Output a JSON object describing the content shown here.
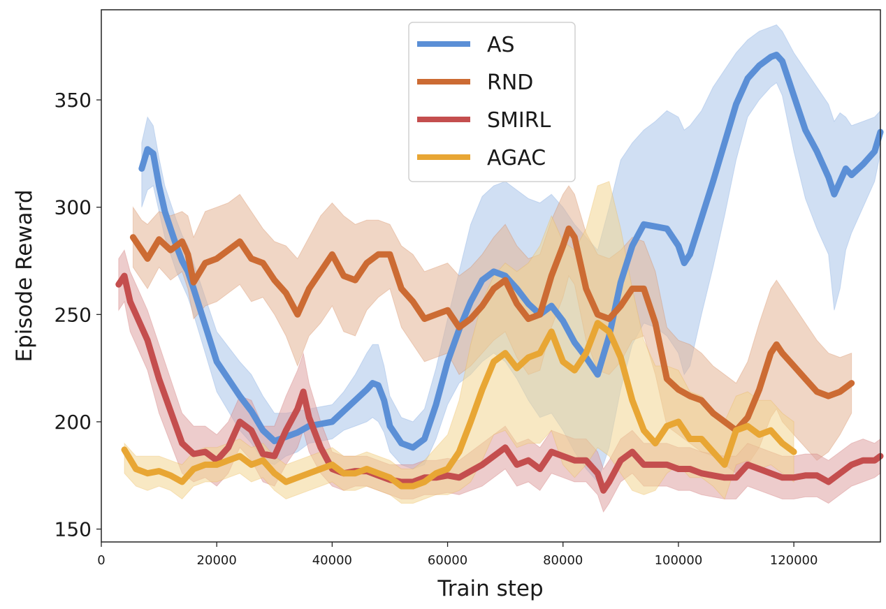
{
  "chart_data": {
    "type": "line",
    "title": "",
    "xlabel": "Train step",
    "ylabel": "Episode Reward",
    "xlim": [
      0,
      135000
    ],
    "ylim": [
      144,
      392
    ],
    "xticks": [
      0,
      20000,
      40000,
      60000,
      80000,
      100000,
      120000
    ],
    "xtick_labels": [
      "0",
      "20000",
      "40000",
      "60000",
      "80000",
      "100000",
      "120000"
    ],
    "yticks": [
      150,
      200,
      250,
      300,
      350
    ],
    "ytick_labels": [
      "150",
      "200",
      "250",
      "300",
      "350"
    ],
    "grid": false,
    "legend_position": "top-center",
    "series": [
      {
        "name": "AS",
        "color": "#5b8fd6",
        "band_color": "#a9c4ea",
        "x": [
          7000,
          8000,
          9000,
          10000,
          11000,
          12000,
          13000,
          14000,
          15000,
          16000,
          18000,
          20000,
          22000,
          24000,
          26000,
          28000,
          30000,
          32000,
          34000,
          36000,
          38000,
          40000,
          42000,
          44000,
          46000,
          47000,
          48000,
          49000,
          50000,
          52000,
          54000,
          56000,
          58000,
          60000,
          62000,
          64000,
          66000,
          68000,
          70000,
          72000,
          74000,
          76000,
          78000,
          80000,
          82000,
          84000,
          86000,
          88000,
          90000,
          92000,
          94000,
          96000,
          98000,
          100000,
          101000,
          102000,
          104000,
          106000,
          108000,
          110000,
          112000,
          114000,
          116000,
          117000,
          118000,
          120000,
          122000,
          124000,
          126000,
          127000,
          128000,
          129000,
          130000,
          132000,
          134000,
          135000
        ],
        "y": [
          318,
          327,
          325,
          310,
          298,
          290,
          282,
          275,
          270,
          262,
          245,
          228,
          220,
          212,
          205,
          196,
          191,
          193,
          195,
          198,
          199,
          200,
          205,
          210,
          215,
          218,
          217,
          210,
          198,
          190,
          188,
          192,
          208,
          228,
          243,
          256,
          266,
          270,
          268,
          262,
          255,
          250,
          254,
          247,
          237,
          230,
          222,
          240,
          265,
          282,
          292,
          291,
          290,
          282,
          274,
          278,
          295,
          312,
          330,
          348,
          360,
          366,
          370,
          371,
          368,
          352,
          336,
          326,
          314,
          306,
          312,
          318,
          315,
          320,
          326,
          335
        ],
        "upper": [
          330,
          342,
          338,
          323,
          310,
          302,
          294,
          287,
          282,
          274,
          258,
          242,
          235,
          228,
          222,
          212,
          204,
          204,
          205,
          206,
          207,
          208,
          214,
          222,
          232,
          236,
          236,
          226,
          212,
          202,
          200,
          206,
          225,
          248,
          270,
          292,
          305,
          310,
          312,
          308,
          304,
          302,
          306,
          300,
          292,
          286,
          280,
          300,
          322,
          330,
          336,
          340,
          345,
          342,
          336,
          338,
          345,
          356,
          364,
          372,
          378,
          382,
          384,
          385,
          382,
          372,
          364,
          356,
          348,
          340,
          344,
          342,
          338,
          340,
          342,
          345
        ],
        "lower": [
          300,
          308,
          310,
          298,
          286,
          278,
          270,
          264,
          258,
          250,
          232,
          214,
          205,
          196,
          190,
          182,
          180,
          184,
          186,
          190,
          191,
          192,
          196,
          198,
          200,
          202,
          200,
          195,
          186,
          180,
          178,
          180,
          192,
          208,
          218,
          222,
          228,
          232,
          228,
          220,
          210,
          202,
          204,
          196,
          186,
          178,
          172,
          188,
          215,
          236,
          246,
          244,
          240,
          232,
          222,
          226,
          250,
          272,
          296,
          322,
          342,
          350,
          356,
          358,
          352,
          326,
          304,
          290,
          278,
          252,
          262,
          280,
          288,
          300,
          312,
          325
        ]
      },
      {
        "name": "RND",
        "color": "#cc6b33",
        "band_color": "#e3b596",
        "x": [
          5500,
          7000,
          8000,
          10000,
          12000,
          14000,
          15000,
          16000,
          18000,
          20000,
          22000,
          24000,
          26000,
          28000,
          30000,
          32000,
          34000,
          36000,
          38000,
          40000,
          42000,
          44000,
          46000,
          48000,
          50000,
          52000,
          54000,
          56000,
          58000,
          60000,
          62000,
          64000,
          66000,
          68000,
          70000,
          72000,
          74000,
          76000,
          78000,
          80000,
          81000,
          82000,
          84000,
          86000,
          88000,
          90000,
          92000,
          94000,
          96000,
          98000,
          100000,
          102000,
          104000,
          106000,
          108000,
          110000,
          112000,
          114000,
          116000,
          117000,
          118000,
          120000,
          122000,
          124000,
          126000,
          128000,
          130000
        ],
        "y": [
          286,
          280,
          276,
          285,
          280,
          284,
          278,
          265,
          274,
          276,
          280,
          284,
          276,
          274,
          266,
          260,
          250,
          262,
          270,
          278,
          268,
          266,
          274,
          278,
          278,
          262,
          256,
          248,
          250,
          252,
          244,
          248,
          254,
          262,
          266,
          255,
          248,
          250,
          268,
          282,
          290,
          286,
          262,
          250,
          248,
          254,
          262,
          262,
          246,
          220,
          215,
          212,
          210,
          204,
          200,
          196,
          202,
          215,
          232,
          236,
          232,
          226,
          220,
          214,
          212,
          214,
          218
        ],
        "upper": [
          300,
          294,
          292,
          298,
          296,
          298,
          296,
          286,
          298,
          300,
          302,
          306,
          298,
          290,
          284,
          282,
          276,
          286,
          296,
          302,
          296,
          292,
          294,
          294,
          292,
          282,
          278,
          270,
          272,
          274,
          268,
          272,
          278,
          286,
          292,
          282,
          276,
          278,
          294,
          306,
          310,
          306,
          288,
          278,
          276,
          280,
          286,
          284,
          270,
          244,
          238,
          236,
          232,
          226,
          222,
          218,
          228,
          246,
          262,
          266,
          262,
          254,
          246,
          238,
          232,
          230,
          232
        ],
        "lower": [
          272,
          266,
          262,
          272,
          266,
          270,
          262,
          248,
          254,
          256,
          260,
          264,
          256,
          258,
          250,
          240,
          226,
          240,
          246,
          254,
          242,
          240,
          252,
          258,
          262,
          244,
          236,
          228,
          230,
          232,
          222,
          226,
          232,
          238,
          242,
          230,
          222,
          224,
          244,
          258,
          268,
          264,
          238,
          224,
          222,
          228,
          238,
          240,
          222,
          198,
          194,
          190,
          186,
          184,
          180,
          176,
          180,
          188,
          202,
          206,
          200,
          194,
          188,
          182,
          186,
          194,
          204
        ]
      },
      {
        "name": "SMIRL",
        "color": "#c44e4e",
        "band_color": "#dfa3a3",
        "x": [
          3000,
          4000,
          5000,
          6000,
          8000,
          10000,
          12000,
          14000,
          16000,
          18000,
          20000,
          22000,
          24000,
          26000,
          28000,
          30000,
          32000,
          34000,
          35000,
          36000,
          38000,
          40000,
          42000,
          44000,
          46000,
          48000,
          50000,
          52000,
          54000,
          56000,
          58000,
          60000,
          62000,
          64000,
          66000,
          68000,
          70000,
          72000,
          74000,
          76000,
          78000,
          80000,
          82000,
          84000,
          86000,
          87000,
          88000,
          90000,
          92000,
          94000,
          96000,
          98000,
          100000,
          102000,
          104000,
          106000,
          108000,
          110000,
          112000,
          114000,
          116000,
          118000,
          120000,
          122000,
          124000,
          126000,
          128000,
          130000,
          132000,
          134000,
          135000
        ],
        "y": [
          264,
          268,
          256,
          250,
          238,
          220,
          205,
          190,
          185,
          186,
          182,
          188,
          200,
          196,
          185,
          184,
          196,
          206,
          214,
          202,
          188,
          178,
          176,
          177,
          177,
          175,
          173,
          172,
          172,
          174,
          174,
          175,
          174,
          177,
          180,
          184,
          188,
          180,
          182,
          178,
          186,
          184,
          182,
          182,
          176,
          168,
          172,
          182,
          186,
          180,
          180,
          180,
          178,
          178,
          176,
          175,
          174,
          174,
          180,
          178,
          176,
          174,
          174,
          175,
          175,
          172,
          176,
          180,
          182,
          182,
          184
        ],
        "upper": [
          276,
          280,
          270,
          264,
          252,
          236,
          220,
          204,
          198,
          198,
          194,
          200,
          212,
          210,
          198,
          198,
          212,
          224,
          232,
          218,
          200,
          186,
          184,
          184,
          184,
          182,
          180,
          180,
          180,
          182,
          182,
          183,
          182,
          186,
          190,
          194,
          198,
          190,
          192,
          188,
          196,
          194,
          192,
          192,
          186,
          178,
          182,
          192,
          196,
          190,
          190,
          190,
          188,
          188,
          186,
          185,
          184,
          184,
          190,
          188,
          186,
          184,
          184,
          185,
          185,
          182,
          186,
          190,
          192,
          190,
          192
        ],
        "lower": [
          252,
          256,
          242,
          236,
          224,
          204,
          190,
          176,
          172,
          174,
          170,
          176,
          188,
          182,
          172,
          170,
          180,
          188,
          196,
          186,
          176,
          170,
          168,
          170,
          170,
          168,
          166,
          164,
          164,
          166,
          166,
          167,
          166,
          168,
          170,
          174,
          178,
          170,
          172,
          168,
          176,
          174,
          172,
          172,
          166,
          158,
          162,
          172,
          176,
          170,
          170,
          170,
          168,
          168,
          166,
          165,
          164,
          164,
          170,
          168,
          166,
          164,
          164,
          165,
          165,
          162,
          166,
          170,
          172,
          174,
          176
        ]
      },
      {
        "name": "AGAC",
        "color": "#e8a634",
        "band_color": "#f3d592",
        "x": [
          4000,
          6000,
          8000,
          10000,
          12000,
          14000,
          16000,
          18000,
          20000,
          22000,
          24000,
          26000,
          28000,
          30000,
          32000,
          34000,
          36000,
          38000,
          40000,
          42000,
          44000,
          46000,
          48000,
          50000,
          52000,
          54000,
          56000,
          58000,
          60000,
          62000,
          64000,
          66000,
          68000,
          70000,
          72000,
          74000,
          76000,
          78000,
          80000,
          82000,
          84000,
          86000,
          88000,
          90000,
          92000,
          94000,
          96000,
          98000,
          100000,
          102000,
          104000,
          106000,
          108000,
          110000,
          112000,
          114000,
          116000,
          118000,
          120000
        ],
        "y": [
          187,
          178,
          176,
          177,
          175,
          172,
          178,
          180,
          180,
          182,
          184,
          180,
          182,
          176,
          172,
          174,
          176,
          178,
          180,
          176,
          176,
          178,
          176,
          174,
          170,
          170,
          172,
          176,
          178,
          186,
          200,
          215,
          228,
          232,
          225,
          230,
          232,
          242,
          228,
          224,
          232,
          246,
          242,
          230,
          210,
          196,
          190,
          198,
          200,
          192,
          192,
          186,
          180,
          196,
          198,
          194,
          196,
          190,
          186
        ],
        "upper": [
          190,
          184,
          184,
          184,
          182,
          180,
          186,
          188,
          188,
          190,
          192,
          188,
          190,
          184,
          180,
          182,
          184,
          186,
          188,
          184,
          184,
          186,
          184,
          182,
          178,
          178,
          182,
          188,
          194,
          210,
          236,
          256,
          268,
          274,
          270,
          274,
          282,
          296,
          284,
          280,
          290,
          310,
          312,
          290,
          262,
          238,
          226,
          226,
          224,
          214,
          212,
          206,
          200,
          212,
          214,
          210,
          210,
          204,
          200
        ],
        "lower": [
          176,
          170,
          168,
          170,
          168,
          164,
          170,
          172,
          172,
          174,
          176,
          172,
          174,
          168,
          164,
          166,
          168,
          170,
          172,
          168,
          168,
          170,
          168,
          166,
          162,
          162,
          164,
          166,
          166,
          168,
          172,
          182,
          194,
          196,
          188,
          190,
          190,
          196,
          180,
          174,
          180,
          188,
          184,
          176,
          168,
          166,
          168,
          176,
          180,
          174,
          174,
          170,
          164,
          180,
          182,
          178,
          180,
          176,
          172
        ]
      }
    ]
  }
}
